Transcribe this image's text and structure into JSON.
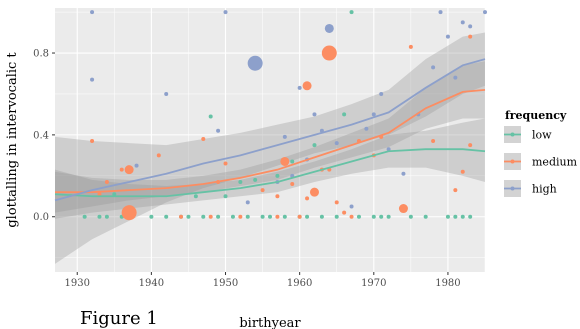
{
  "chart_data": {
    "type": "scatter",
    "title": "",
    "xlabel": "birthyear",
    "ylabel": "glottalling in intervocalic t",
    "xlim": [
      1927,
      1985
    ],
    "ylim": [
      -0.27,
      1.02
    ],
    "x_ticks": [
      1930,
      1940,
      1950,
      1960,
      1970,
      1980
    ],
    "x_tick_labels": [
      "1930",
      "1940",
      "1950",
      "1960",
      "1970",
      "1980"
    ],
    "y_ticks": [
      0.0,
      0.4,
      0.8
    ],
    "y_tick_labels": [
      "0.0",
      "0.4",
      "0.8"
    ],
    "grid": true,
    "legend": {
      "title": "frequency",
      "position": "right",
      "entries": [
        {
          "label": "low",
          "color": "#66C2A5"
        },
        {
          "label": "medium",
          "color": "#FC8D62"
        },
        {
          "label": "high",
          "color": "#8DA0CB"
        }
      ]
    },
    "caption": "Figure 1",
    "series": [
      {
        "name": "low",
        "color": "#66C2A5",
        "points": [
          [
            1931,
            0.0
          ],
          [
            1933,
            0.0
          ],
          [
            1934,
            0.0
          ],
          [
            1935,
            0.11
          ],
          [
            1936,
            0.0
          ],
          [
            1937,
            0.02
          ],
          [
            1940,
            0.0
          ],
          [
            1942,
            0.0
          ],
          [
            1944,
            0.0
          ],
          [
            1945,
            0.0
          ],
          [
            1946,
            0.1
          ],
          [
            1947,
            0.0
          ],
          [
            1948,
            0.49
          ],
          [
            1949,
            0.0
          ],
          [
            1950,
            0.1
          ],
          [
            1951,
            0.0
          ],
          [
            1952,
            0.17
          ],
          [
            1953,
            0.0
          ],
          [
            1954,
            0.18
          ],
          [
            1955,
            0.0
          ],
          [
            1956,
            0.0
          ],
          [
            1957,
            0.2
          ],
          [
            1958,
            0.0
          ],
          [
            1959,
            0.27
          ],
          [
            1960,
            0.0
          ],
          [
            1961,
            0.0
          ],
          [
            1962,
            0.35
          ],
          [
            1963,
            0.0
          ],
          [
            1965,
            0.0
          ],
          [
            1966,
            0.5
          ],
          [
            1967,
            1.0
          ],
          [
            1968,
            0.0
          ],
          [
            1970,
            0.0
          ],
          [
            1971,
            0.0
          ],
          [
            1972,
            0.0
          ],
          [
            1975,
            0.0
          ],
          [
            1977,
            0.0
          ],
          [
            1980,
            0.0
          ],
          [
            1981,
            0.0
          ],
          [
            1982,
            0.0
          ],
          [
            1983,
            0.0
          ]
        ],
        "sizes": [
          1,
          1,
          1,
          1,
          1,
          2,
          1,
          1,
          1,
          1,
          1,
          1,
          1,
          1,
          1,
          1,
          1,
          1,
          1,
          1,
          1,
          1,
          1,
          1,
          1,
          1,
          1,
          1,
          1,
          1,
          1,
          1,
          1,
          1,
          1,
          1,
          1,
          1,
          1,
          1,
          1
        ],
        "smooth": [
          [
            1927,
            0.11
          ],
          [
            1932,
            0.1
          ],
          [
            1937,
            0.1
          ],
          [
            1942,
            0.1
          ],
          [
            1947,
            0.12
          ],
          [
            1952,
            0.14
          ],
          [
            1957,
            0.17
          ],
          [
            1962,
            0.22
          ],
          [
            1967,
            0.27
          ],
          [
            1972,
            0.32
          ],
          [
            1977,
            0.33
          ],
          [
            1982,
            0.33
          ],
          [
            1985,
            0.32
          ]
        ],
        "band": [
          [
            1927,
            -0.01,
            0.23
          ],
          [
            1932,
            0.02,
            0.18
          ],
          [
            1937,
            0.04,
            0.16
          ],
          [
            1942,
            0.06,
            0.15
          ],
          [
            1947,
            0.08,
            0.16
          ],
          [
            1952,
            0.1,
            0.18
          ],
          [
            1957,
            0.12,
            0.22
          ],
          [
            1962,
            0.17,
            0.27
          ],
          [
            1967,
            0.21,
            0.33
          ],
          [
            1972,
            0.24,
            0.4
          ],
          [
            1977,
            0.24,
            0.42
          ],
          [
            1982,
            0.2,
            0.46
          ],
          [
            1985,
            0.17,
            0.48
          ]
        ]
      },
      {
        "name": "medium",
        "color": "#FC8D62",
        "points": [
          [
            1932,
            0.37
          ],
          [
            1933,
            0.11
          ],
          [
            1934,
            0.17
          ],
          [
            1936,
            0.23
          ],
          [
            1937,
            0.02
          ],
          [
            1937,
            0.23
          ],
          [
            1941,
            0.3
          ],
          [
            1944,
            0.0
          ],
          [
            1947,
            0.38
          ],
          [
            1948,
            0.0
          ],
          [
            1949,
            0.17
          ],
          [
            1950,
            0.26
          ],
          [
            1952,
            0.0
          ],
          [
            1955,
            0.13
          ],
          [
            1957,
            0.0
          ],
          [
            1957,
            0.1
          ],
          [
            1958,
            0.27
          ],
          [
            1959,
            0.16
          ],
          [
            1960,
            0.0
          ],
          [
            1961,
            0.64
          ],
          [
            1961,
            0.09
          ],
          [
            1962,
            0.12
          ],
          [
            1963,
            0.23
          ],
          [
            1964,
            0.8
          ],
          [
            1964,
            0.23
          ],
          [
            1965,
            0.07
          ],
          [
            1966,
            0.02
          ],
          [
            1967,
            0.0
          ],
          [
            1968,
            0.37
          ],
          [
            1970,
            0.3
          ],
          [
            1971,
            0.39
          ],
          [
            1974,
            0.04
          ],
          [
            1975,
            0.83
          ],
          [
            1978,
            0.37
          ],
          [
            1981,
            0.13
          ],
          [
            1982,
            0.22
          ],
          [
            1983,
            0.35
          ],
          [
            1983,
            0.88
          ]
        ],
        "sizes": [
          1,
          1,
          1,
          1,
          3,
          2,
          1,
          1,
          1,
          1,
          1,
          1,
          1,
          1,
          1,
          1,
          2,
          1,
          1,
          2,
          1,
          2,
          1,
          3,
          1,
          1,
          1,
          1,
          1,
          1,
          1,
          2,
          1,
          1,
          1,
          1,
          1,
          1
        ],
        "smooth": [
          [
            1927,
            0.12
          ],
          [
            1932,
            0.12
          ],
          [
            1937,
            0.13
          ],
          [
            1942,
            0.14
          ],
          [
            1947,
            0.16
          ],
          [
            1952,
            0.19
          ],
          [
            1957,
            0.23
          ],
          [
            1962,
            0.29
          ],
          [
            1967,
            0.35
          ],
          [
            1972,
            0.41
          ],
          [
            1977,
            0.53
          ],
          [
            1982,
            0.61
          ],
          [
            1985,
            0.62
          ]
        ],
        "band": [
          [
            1927,
            0.02,
            0.22
          ],
          [
            1932,
            0.05,
            0.19
          ],
          [
            1937,
            0.08,
            0.18
          ],
          [
            1942,
            0.1,
            0.18
          ],
          [
            1947,
            0.12,
            0.2
          ],
          [
            1952,
            0.15,
            0.23
          ],
          [
            1957,
            0.18,
            0.28
          ],
          [
            1962,
            0.24,
            0.34
          ],
          [
            1967,
            0.29,
            0.41
          ],
          [
            1972,
            0.34,
            0.48
          ],
          [
            1977,
            0.43,
            0.63
          ],
          [
            1982,
            0.48,
            0.74
          ],
          [
            1985,
            0.48,
            0.76
          ]
        ]
      },
      {
        "name": "high",
        "color": "#8DA0CB",
        "points": [
          [
            1932,
            0.67
          ],
          [
            1932,
            1.0
          ],
          [
            1938,
            0.25
          ],
          [
            1942,
            0.6
          ],
          [
            1949,
            0.42
          ],
          [
            1950,
            1.0
          ],
          [
            1953,
            0.07
          ],
          [
            1954,
            0.75
          ],
          [
            1957,
            0.17
          ],
          [
            1958,
            0.39
          ],
          [
            1959,
            0.2
          ],
          [
            1960,
            0.63
          ],
          [
            1961,
            0.28
          ],
          [
            1962,
            0.5
          ],
          [
            1963,
            0.42
          ],
          [
            1964,
            0.92
          ],
          [
            1965,
            0.36
          ],
          [
            1967,
            0.05
          ],
          [
            1969,
            0.43
          ],
          [
            1970,
            0.5
          ],
          [
            1971,
            0.6
          ],
          [
            1972,
            0.33
          ],
          [
            1974,
            0.21
          ],
          [
            1976,
            0.5
          ],
          [
            1978,
            0.73
          ],
          [
            1979,
            1.0
          ],
          [
            1980,
            0.88
          ],
          [
            1981,
            0.68
          ],
          [
            1982,
            0.95
          ],
          [
            1983,
            0.93
          ],
          [
            1985,
            1.0
          ]
        ],
        "sizes": [
          1,
          1,
          1,
          1,
          1,
          1,
          1,
          3,
          1,
          1,
          1,
          1,
          1,
          1,
          1,
          2,
          1,
          1,
          1,
          1,
          1,
          1,
          1,
          1,
          1,
          1,
          1,
          1,
          1,
          1,
          1
        ],
        "smooth": [
          [
            1927,
            0.08
          ],
          [
            1932,
            0.13
          ],
          [
            1937,
            0.17
          ],
          [
            1942,
            0.21
          ],
          [
            1947,
            0.26
          ],
          [
            1952,
            0.3
          ],
          [
            1957,
            0.35
          ],
          [
            1962,
            0.4
          ],
          [
            1967,
            0.45
          ],
          [
            1972,
            0.51
          ],
          [
            1977,
            0.63
          ],
          [
            1982,
            0.74
          ],
          [
            1985,
            0.77
          ]
        ],
        "band": [
          [
            1927,
            -0.23,
            0.39
          ],
          [
            1932,
            -0.11,
            0.37
          ],
          [
            1937,
            -0.02,
            0.36
          ],
          [
            1942,
            0.07,
            0.35
          ],
          [
            1947,
            0.14,
            0.38
          ],
          [
            1952,
            0.19,
            0.41
          ],
          [
            1957,
            0.25,
            0.45
          ],
          [
            1962,
            0.31,
            0.49
          ],
          [
            1967,
            0.35,
            0.55
          ],
          [
            1972,
            0.4,
            0.62
          ],
          [
            1977,
            0.49,
            0.77
          ],
          [
            1982,
            0.6,
            0.88
          ],
          [
            1985,
            0.64,
            0.9
          ]
        ]
      }
    ]
  }
}
